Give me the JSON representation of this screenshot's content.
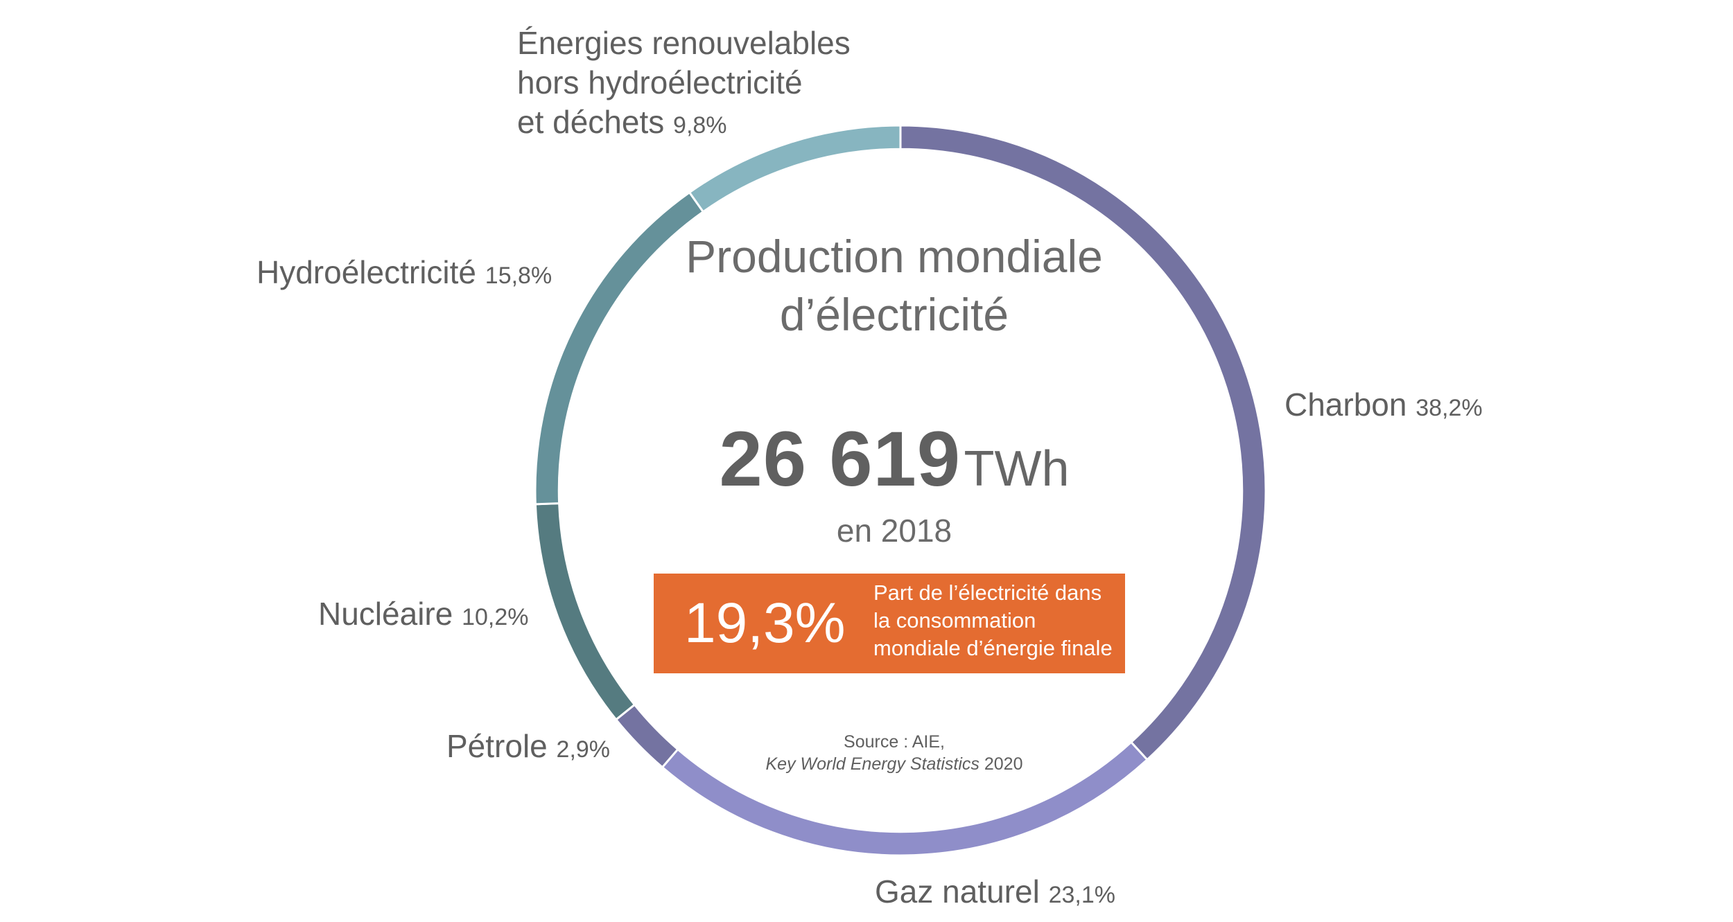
{
  "chart_data": {
    "type": "pie",
    "title": "Production mondiale d’électricité",
    "total": {
      "value": "26 619",
      "unit": "TWh",
      "period": "en 2018"
    },
    "slices": [
      {
        "name": "Charbon",
        "value": 38.2,
        "label": "38,2%",
        "color": "#7473a1"
      },
      {
        "name": "Gaz naturel",
        "value": 23.1,
        "label": "23,1%",
        "color": "#8f8ec9"
      },
      {
        "name": "Pétrole",
        "value": 2.9,
        "label": "2,9%",
        "color": "#7473a1"
      },
      {
        "name": "Nucléaire",
        "value": 10.2,
        "label": "10,2%",
        "color": "#557b80"
      },
      {
        "name": "Hydroélectricité",
        "value": 15.8,
        "label": "15,8%",
        "color": "#65919a"
      },
      {
        "name": "Énergies renouvelables hors hydroélectricité et déchets",
        "value": 9.8,
        "label": "9,8%",
        "color": "#87b5c0",
        "lines": [
          "Énergies renouvelables",
          "hors hydroélectricité",
          "et déchets"
        ]
      }
    ],
    "start_angle_deg": 0,
    "direction": "clockwise",
    "inner_radius_ratio": 0.935
  },
  "highlight": {
    "value": "19,3%",
    "text": "Part de l’électricité dans la consommation mondiale d’énergie finale",
    "color": "#e46c31"
  },
  "source": {
    "prefix": "Source : AIE,",
    "publication": "Key World Energy Statistics",
    "year": "2020"
  }
}
